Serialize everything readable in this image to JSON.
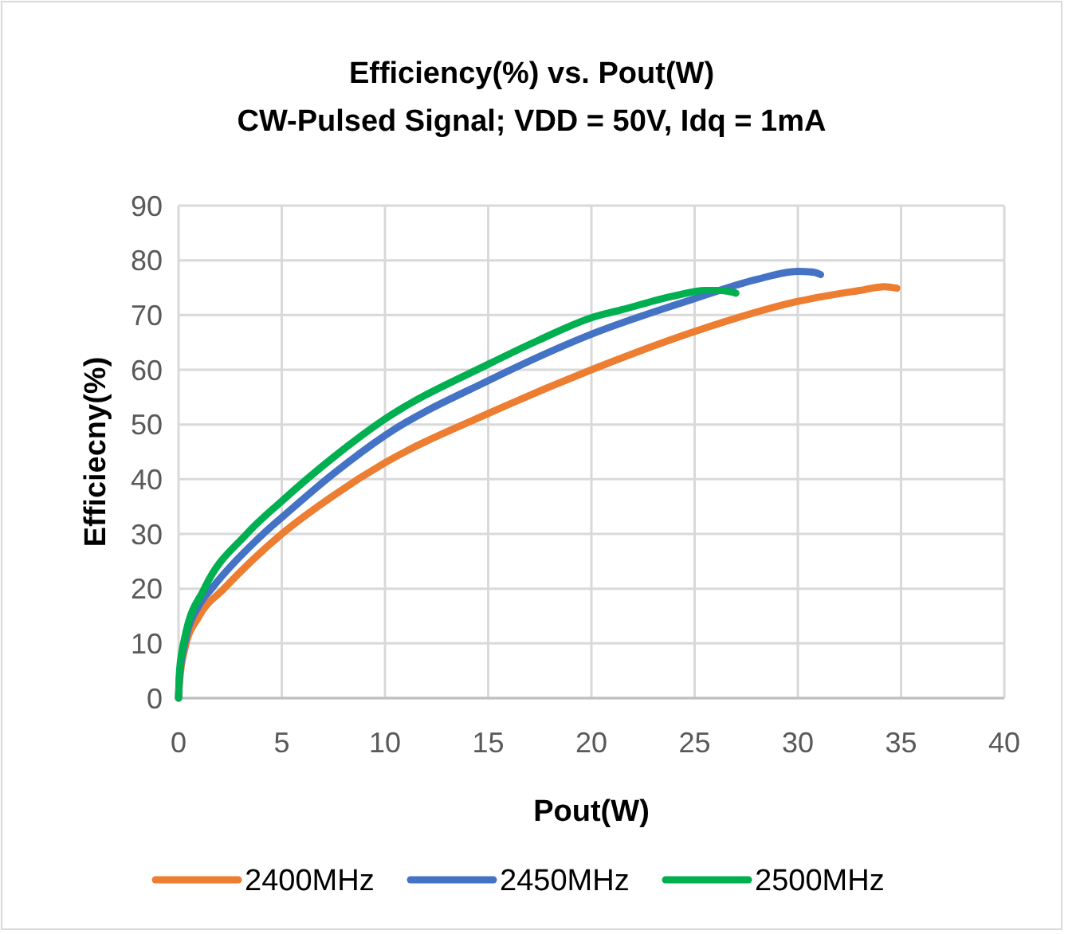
{
  "chart_data": {
    "type": "line",
    "title": "Efficiency(%) vs. Pout(W)",
    "subtitle": "CW-Pulsed Signal; VDD = 50V, Idq = 1mA",
    "xlabel": "Pout(W)",
    "ylabel": "Efficiecny(%)",
    "xlim": [
      0,
      40
    ],
    "xticks": [
      0,
      5,
      10,
      15,
      20,
      25,
      30,
      35,
      40
    ],
    "ylim": [
      0,
      90
    ],
    "yticks": [
      0,
      10,
      20,
      30,
      40,
      50,
      60,
      70,
      80,
      90
    ],
    "grid": true,
    "legend": "bottom",
    "marker": "none",
    "line_style": "solid",
    "series": [
      {
        "name": "2400MHz",
        "color": "#ed7d31",
        "x": [
          0,
          0.05,
          0.3,
          1,
          2.2,
          5,
          7.5,
          10,
          15,
          20,
          25,
          30,
          33,
          34.2,
          34.8
        ],
        "values": [
          0,
          3,
          9,
          15,
          20,
          30,
          37,
          43,
          52,
          60,
          67,
          72.5,
          74.5,
          75.2,
          74.9
        ]
      },
      {
        "name": "2450MHz",
        "color": "#4472c4",
        "x": [
          0,
          0.05,
          0.3,
          1,
          1.6,
          4.1,
          5,
          7.5,
          10,
          15,
          20,
          25,
          28,
          30,
          30.8,
          31.1
        ],
        "values": [
          0,
          4,
          10,
          17,
          20,
          30,
          33,
          41,
          48,
          58,
          66.5,
          73,
          76.5,
          78,
          77.8,
          77.4
        ]
      },
      {
        "name": "2500MHz",
        "color": "#00b050",
        "x": [
          0,
          0.05,
          0.3,
          1.25,
          3.3,
          5,
          7.5,
          10,
          15,
          17.5,
          20,
          21.5,
          24,
          25.5,
          26.3,
          26.8,
          27
        ],
        "values": [
          0,
          5,
          11,
          20,
          30,
          36,
          44,
          51,
          61,
          65.5,
          69.5,
          71,
          73.5,
          74.5,
          74.5,
          74.2,
          74
        ]
      }
    ]
  }
}
